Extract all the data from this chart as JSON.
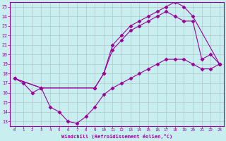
{
  "xlabel": "Windchill (Refroidissement éolien,°C)",
  "bg_color": "#c8eef0",
  "line_color": "#990099",
  "grid_color": "#b0c8cc",
  "xlim": [
    -0.5,
    23.5
  ],
  "ylim": [
    12.5,
    25.5
  ],
  "xticks": [
    0,
    1,
    2,
    3,
    4,
    5,
    6,
    7,
    8,
    9,
    10,
    11,
    12,
    13,
    14,
    15,
    16,
    17,
    18,
    19,
    20,
    21,
    22,
    23
  ],
  "yticks": [
    13,
    14,
    15,
    16,
    17,
    18,
    19,
    20,
    21,
    22,
    23,
    24,
    25
  ],
  "line1_x": [
    0,
    1,
    2,
    3,
    4,
    5,
    6,
    7,
    8,
    9,
    10,
    11,
    12,
    13,
    14,
    15,
    16,
    17,
    18,
    19,
    20,
    21,
    22,
    23
  ],
  "line1_y": [
    17.5,
    17,
    16,
    16.5,
    14.5,
    14,
    13,
    12.8,
    13.5,
    14.5,
    15.8,
    16.5,
    17,
    17.5,
    18,
    18.5,
    19,
    19.5,
    19.5,
    19.5,
    19,
    18.5,
    18.5,
    19
  ],
  "line2_x": [
    0,
    3,
    9,
    10,
    11,
    12,
    13,
    14,
    15,
    16,
    17,
    18,
    19,
    20,
    23
  ],
  "line2_y": [
    17.5,
    16.5,
    16.5,
    18,
    21,
    22,
    23,
    23.5,
    24,
    24.5,
    25,
    25.5,
    25,
    24,
    19
  ],
  "line3_x": [
    0,
    3,
    9,
    10,
    11,
    12,
    13,
    14,
    15,
    16,
    17,
    18,
    19,
    20,
    21,
    22,
    23
  ],
  "line3_y": [
    17.5,
    16.5,
    16.5,
    18,
    20.5,
    21.5,
    22.5,
    23,
    23.5,
    24,
    24.5,
    24,
    23.5,
    23.5,
    19.5,
    20,
    19
  ]
}
